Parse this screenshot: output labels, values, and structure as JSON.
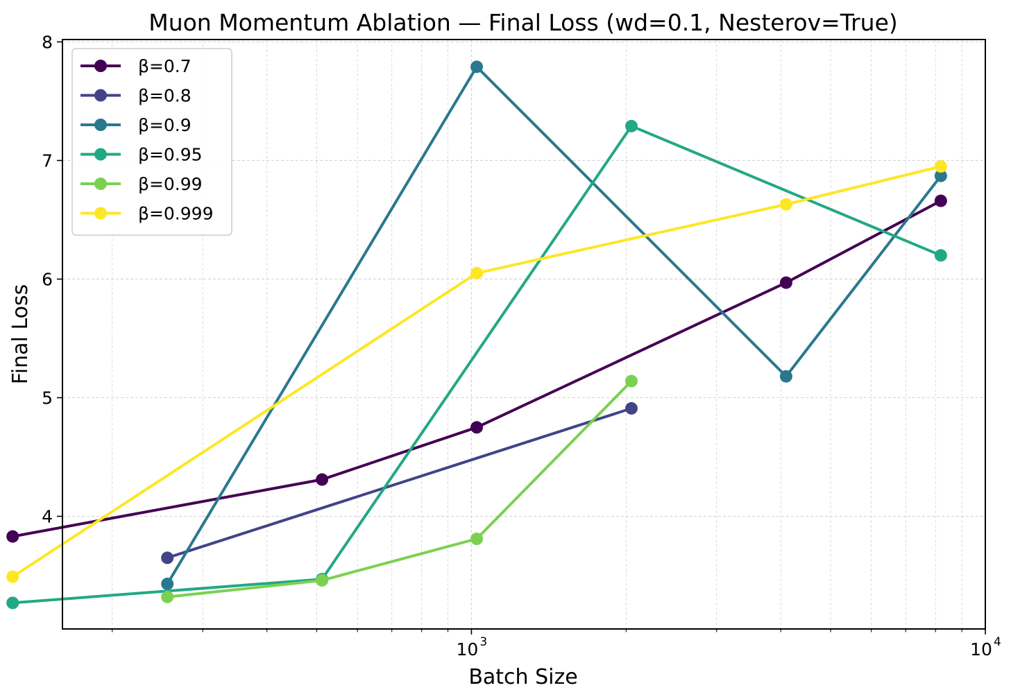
{
  "chart_data": {
    "type": "line",
    "title": "Muon Momentum Ablation — Final Loss  (wd=0.1, Nesterov=True)",
    "xlabel": "Batch Size",
    "ylabel": "Final Loss",
    "xscale": "log",
    "xlim": [
      160,
      10000
    ],
    "ylim": [
      3.05,
      8.02
    ],
    "x_ticks": [
      1000,
      10000
    ],
    "x_tick_labels": [
      {
        "base": "10",
        "exp": "3"
      },
      {
        "base": "10",
        "exp": "4"
      }
    ],
    "y_ticks": [
      4,
      5,
      6,
      7,
      8
    ],
    "y_tick_labels": [
      "4",
      "5",
      "6",
      "7",
      "8"
    ],
    "grid": true,
    "legend_position": "upper-left",
    "series": [
      {
        "name": "β=0.7",
        "color": "#440154",
        "x": [
          128,
          512,
          1024,
          4096,
          8192
        ],
        "y": [
          3.83,
          4.31,
          4.75,
          5.97,
          6.66
        ]
      },
      {
        "name": "β=0.8",
        "color": "#414487",
        "x": [
          256,
          2048
        ],
        "y": [
          3.65,
          4.91
        ]
      },
      {
        "name": "β=0.9",
        "color": "#2a788e",
        "x": [
          256,
          1024,
          4096,
          8192
        ],
        "y": [
          3.43,
          7.79,
          5.18,
          6.87
        ]
      },
      {
        "name": "β=0.95",
        "color": "#22a884",
        "x": [
          128,
          512,
          2048,
          8192
        ],
        "y": [
          3.27,
          3.47,
          7.29,
          6.2
        ]
      },
      {
        "name": "β=0.99",
        "color": "#7ad151",
        "x": [
          256,
          512,
          1024,
          2048
        ],
        "y": [
          3.32,
          3.46,
          3.81,
          5.14
        ]
      },
      {
        "name": "β=0.999",
        "color": "#fde725",
        "x": [
          128,
          1024,
          4096,
          8192
        ],
        "y": [
          3.49,
          6.05,
          6.63,
          6.95
        ]
      }
    ]
  }
}
